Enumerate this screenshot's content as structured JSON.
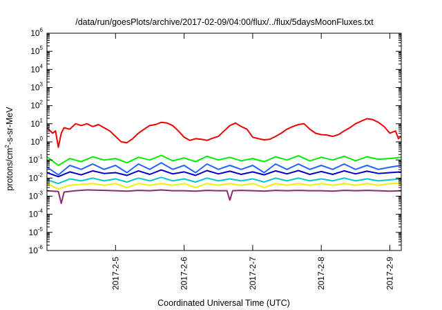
{
  "chart_data": {
    "type": "line",
    "title": "/data/run/goesPlots/archive/2017-02-09/04:00/flux/../flux/5daysMoonFluxes.txt",
    "xlabel": "Coordinated Universal Time (UTC)",
    "ylabel": "protons/cm²-s-sr-MeV",
    "ylabel_parts": {
      "pre": "protons/cm",
      "sup": "2",
      "post": "-s-sr-MeV"
    },
    "yscale": "log",
    "ylim": [
      1e-06,
      1000000.0
    ],
    "y_ticks": [
      {
        "base": "10",
        "exp": "-6",
        "value": 1e-06
      },
      {
        "base": "10",
        "exp": "-5",
        "value": 1e-05
      },
      {
        "base": "10",
        "exp": "-4",
        "value": 0.0001
      },
      {
        "base": "10",
        "exp": "-3",
        "value": 0.001
      },
      {
        "base": "10",
        "exp": "-2",
        "value": 0.01
      },
      {
        "base": "10",
        "exp": "-1",
        "value": 0.1
      },
      {
        "base": "10",
        "exp": "0",
        "value": 1
      },
      {
        "base": "10",
        "exp": "1",
        "value": 10
      },
      {
        "base": "10",
        "exp": "2",
        "value": 100
      },
      {
        "base": "10",
        "exp": "3",
        "value": 1000
      },
      {
        "base": "10",
        "exp": "4",
        "value": 10000
      },
      {
        "base": "10",
        "exp": "5",
        "value": 100000
      },
      {
        "base": "10",
        "exp": "6",
        "value": 1000000
      }
    ],
    "x_range": [
      "2017-02-04T00:00",
      "2017-02-09T04:00"
    ],
    "x_ticks": [
      "2017-2-5",
      "2017-2-6",
      "2017-2-7",
      "2017-2-8",
      "2017-2-9"
    ],
    "x_tick_values": [
      "2017-02-05T00:00",
      "2017-02-06T00:00",
      "2017-02-07T00:00",
      "2017-02-08T00:00",
      "2017-02-09T00:00"
    ],
    "grid": false,
    "legend": "none",
    "series": [
      {
        "color": "#ee0000",
        "x": [
          "2017-02-04T00:00",
          "2017-02-04T02:00",
          "2017-02-04T03:00",
          "2017-02-04T04:00",
          "2017-02-04T05:00",
          "2017-02-04T06:00",
          "2017-02-04T08:00",
          "2017-02-04T10:00",
          "2017-02-04T12:00",
          "2017-02-04T14:00",
          "2017-02-04T16:00",
          "2017-02-04T18:00",
          "2017-02-04T20:00",
          "2017-02-04T22:00",
          "2017-02-05T00:00",
          "2017-02-05T02:00",
          "2017-02-05T04:00",
          "2017-02-05T06:00",
          "2017-02-05T08:00",
          "2017-02-05T10:00",
          "2017-02-05T12:00",
          "2017-02-05T14:00",
          "2017-02-05T16:00",
          "2017-02-05T18:00",
          "2017-02-05T20:00",
          "2017-02-05T22:00",
          "2017-02-06T00:00",
          "2017-02-06T02:00",
          "2017-02-06T04:00",
          "2017-02-06T06:00",
          "2017-02-06T08:00",
          "2017-02-06T10:00",
          "2017-02-06T12:00",
          "2017-02-06T14:00",
          "2017-02-06T16:00",
          "2017-02-06T18:00",
          "2017-02-06T20:00",
          "2017-02-06T22:00",
          "2017-02-07T00:00",
          "2017-02-07T02:00",
          "2017-02-07T04:00",
          "2017-02-07T06:00",
          "2017-02-07T08:00",
          "2017-02-07T10:00",
          "2017-02-07T12:00",
          "2017-02-07T14:00",
          "2017-02-07T16:00",
          "2017-02-07T18:00",
          "2017-02-07T20:00",
          "2017-02-07T22:00",
          "2017-02-08T00:00",
          "2017-02-08T02:00",
          "2017-02-08T04:00",
          "2017-02-08T06:00",
          "2017-02-08T08:00",
          "2017-02-08T10:00",
          "2017-02-08T12:00",
          "2017-02-08T14:00",
          "2017-02-08T16:00",
          "2017-02-08T18:00",
          "2017-02-08T20:00",
          "2017-02-08T22:00",
          "2017-02-09T00:00",
          "2017-02-09T02:00",
          "2017-02-09T03:00",
          "2017-02-09T04:00"
        ],
        "y": [
          6,
          3,
          4,
          0.5,
          3,
          6,
          5,
          10,
          8,
          10,
          7,
          9,
          6,
          4,
          2,
          1,
          0.9,
          1.5,
          3,
          5,
          8,
          9,
          12,
          11,
          8,
          4,
          1.8,
          1.2,
          1.5,
          1.4,
          1.2,
          1.6,
          2,
          4,
          8,
          11,
          7,
          5,
          1.8,
          1.5,
          1.3,
          1.4,
          2,
          3,
          5,
          7,
          9,
          10,
          5,
          3,
          2.5,
          2.4,
          2,
          2.5,
          4,
          6,
          10,
          14,
          19,
          17,
          12,
          7,
          3,
          4,
          1.5,
          2
        ]
      },
      {
        "color": "#00ee00",
        "x": [
          "2017-02-04T00:00",
          "2017-02-04T04:00",
          "2017-02-04T08:00",
          "2017-02-04T12:00",
          "2017-02-04T16:00",
          "2017-02-04T20:00",
          "2017-02-05T00:00",
          "2017-02-05T04:00",
          "2017-02-05T08:00",
          "2017-02-05T12:00",
          "2017-02-05T16:00",
          "2017-02-05T20:00",
          "2017-02-06T00:00",
          "2017-02-06T04:00",
          "2017-02-06T08:00",
          "2017-02-06T12:00",
          "2017-02-06T16:00",
          "2017-02-06T20:00",
          "2017-02-07T00:00",
          "2017-02-07T04:00",
          "2017-02-07T08:00",
          "2017-02-07T12:00",
          "2017-02-07T16:00",
          "2017-02-07T20:00",
          "2017-02-08T00:00",
          "2017-02-08T04:00",
          "2017-02-08T08:00",
          "2017-02-08T12:00",
          "2017-02-08T16:00",
          "2017-02-08T20:00",
          "2017-02-09T00:00",
          "2017-02-09T04:00"
        ],
        "y": [
          0.15,
          0.05,
          0.12,
          0.08,
          0.15,
          0.1,
          0.12,
          0.07,
          0.14,
          0.1,
          0.18,
          0.09,
          0.13,
          0.08,
          0.16,
          0.1,
          0.14,
          0.09,
          0.12,
          0.08,
          0.15,
          0.1,
          0.17,
          0.09,
          0.14,
          0.1,
          0.16,
          0.09,
          0.15,
          0.11,
          0.12,
          0.14
        ]
      },
      {
        "color": "#1e64ff",
        "x": [
          "2017-02-04T00:00",
          "2017-02-04T04:00",
          "2017-02-04T08:00",
          "2017-02-04T12:00",
          "2017-02-04T16:00",
          "2017-02-04T20:00",
          "2017-02-05T00:00",
          "2017-02-05T04:00",
          "2017-02-05T08:00",
          "2017-02-05T12:00",
          "2017-02-05T16:00",
          "2017-02-05T20:00",
          "2017-02-06T00:00",
          "2017-02-06T04:00",
          "2017-02-06T08:00",
          "2017-02-06T12:00",
          "2017-02-06T16:00",
          "2017-02-06T20:00",
          "2017-02-07T00:00",
          "2017-02-07T04:00",
          "2017-02-07T08:00",
          "2017-02-07T12:00",
          "2017-02-07T16:00",
          "2017-02-07T20:00",
          "2017-02-08T00:00",
          "2017-02-08T04:00",
          "2017-02-08T08:00",
          "2017-02-08T12:00",
          "2017-02-08T16:00",
          "2017-02-08T20:00",
          "2017-02-09T00:00",
          "2017-02-09T04:00"
        ],
        "y": [
          0.04,
          0.015,
          0.05,
          0.03,
          0.06,
          0.03,
          0.05,
          0.02,
          0.06,
          0.03,
          0.07,
          0.03,
          0.05,
          0.02,
          0.06,
          0.03,
          0.05,
          0.03,
          0.05,
          0.02,
          0.06,
          0.03,
          0.06,
          0.03,
          0.05,
          0.03,
          0.06,
          0.03,
          0.05,
          0.03,
          0.04,
          0.05
        ]
      },
      {
        "color": "#0000c8",
        "x": [
          "2017-02-04T00:00",
          "2017-02-04T04:00",
          "2017-02-04T08:00",
          "2017-02-04T12:00",
          "2017-02-04T16:00",
          "2017-02-04T20:00",
          "2017-02-05T00:00",
          "2017-02-05T04:00",
          "2017-02-05T08:00",
          "2017-02-05T12:00",
          "2017-02-05T16:00",
          "2017-02-05T20:00",
          "2017-02-06T00:00",
          "2017-02-06T04:00",
          "2017-02-06T08:00",
          "2017-02-06T12:00",
          "2017-02-06T16:00",
          "2017-02-06T20:00",
          "2017-02-07T00:00",
          "2017-02-07T04:00",
          "2017-02-07T08:00",
          "2017-02-07T12:00",
          "2017-02-07T16:00",
          "2017-02-07T20:00",
          "2017-02-08T00:00",
          "2017-02-08T04:00",
          "2017-02-08T08:00",
          "2017-02-08T12:00",
          "2017-02-08T16:00",
          "2017-02-08T20:00",
          "2017-02-09T00:00",
          "2017-02-09T04:00"
        ],
        "y": [
          0.02,
          0.012,
          0.022,
          0.015,
          0.025,
          0.018,
          0.02,
          0.014,
          0.025,
          0.016,
          0.028,
          0.017,
          0.022,
          0.014,
          0.026,
          0.017,
          0.024,
          0.016,
          0.022,
          0.015,
          0.025,
          0.017,
          0.026,
          0.016,
          0.023,
          0.016,
          0.025,
          0.017,
          0.024,
          0.018,
          0.02,
          0.022
        ]
      },
      {
        "color": "#00c8c8",
        "x": [
          "2017-02-04T00:00",
          "2017-02-04T04:00",
          "2017-02-04T08:00",
          "2017-02-04T12:00",
          "2017-02-04T16:00",
          "2017-02-04T20:00",
          "2017-02-05T00:00",
          "2017-02-05T04:00",
          "2017-02-05T08:00",
          "2017-02-05T12:00",
          "2017-02-05T16:00",
          "2017-02-05T20:00",
          "2017-02-06T00:00",
          "2017-02-06T04:00",
          "2017-02-06T08:00",
          "2017-02-06T12:00",
          "2017-02-06T16:00",
          "2017-02-06T20:00",
          "2017-02-07T00:00",
          "2017-02-07T04:00",
          "2017-02-07T08:00",
          "2017-02-07T12:00",
          "2017-02-07T16:00",
          "2017-02-07T20:00",
          "2017-02-08T00:00",
          "2017-02-08T04:00",
          "2017-02-08T08:00",
          "2017-02-08T12:00",
          "2017-02-08T16:00",
          "2017-02-08T20:00",
          "2017-02-09T00:00",
          "2017-02-09T04:00"
        ],
        "y": [
          0.008,
          0.005,
          0.009,
          0.007,
          0.01,
          0.007,
          0.009,
          0.006,
          0.01,
          0.007,
          0.011,
          0.007,
          0.009,
          0.006,
          0.01,
          0.007,
          0.009,
          0.007,
          0.009,
          0.006,
          0.01,
          0.007,
          0.01,
          0.007,
          0.009,
          0.007,
          0.01,
          0.007,
          0.009,
          0.007,
          0.008,
          0.009
        ]
      },
      {
        "color": "#f0f000",
        "x": [
          "2017-02-04T00:00",
          "2017-02-04T04:00",
          "2017-02-04T08:00",
          "2017-02-04T12:00",
          "2017-02-04T16:00",
          "2017-02-04T20:00",
          "2017-02-05T00:00",
          "2017-02-05T04:00",
          "2017-02-05T08:00",
          "2017-02-05T12:00",
          "2017-02-05T16:00",
          "2017-02-05T20:00",
          "2017-02-06T00:00",
          "2017-02-06T04:00",
          "2017-02-06T08:00",
          "2017-02-06T12:00",
          "2017-02-06T16:00",
          "2017-02-06T20:00",
          "2017-02-07T00:00",
          "2017-02-07T04:00",
          "2017-02-07T08:00",
          "2017-02-07T12:00",
          "2017-02-07T16:00",
          "2017-02-07T20:00",
          "2017-02-08T00:00",
          "2017-02-08T04:00",
          "2017-02-08T08:00",
          "2017-02-08T12:00",
          "2017-02-08T16:00",
          "2017-02-08T20:00",
          "2017-02-09T00:00",
          "2017-02-09T04:00"
        ],
        "y": [
          0.005,
          0.0025,
          0.004,
          0.0045,
          0.005,
          0.004,
          0.005,
          0.003,
          0.005,
          0.004,
          0.005,
          0.004,
          0.005,
          0.003,
          0.005,
          0.004,
          0.005,
          0.004,
          0.005,
          0.003,
          0.005,
          0.004,
          0.005,
          0.004,
          0.005,
          0.004,
          0.005,
          0.004,
          0.005,
          0.004,
          0.005,
          0.005
        ]
      },
      {
        "color": "#8c286e",
        "x": [
          "2017-02-04T00:00",
          "2017-02-04T04:00",
          "2017-02-04T05:00",
          "2017-02-04T06:00",
          "2017-02-04T10:00",
          "2017-02-04T14:00",
          "2017-02-04T20:00",
          "2017-02-05T00:00",
          "2017-02-05T04:00",
          "2017-02-05T08:00",
          "2017-02-05T12:00",
          "2017-02-05T16:00",
          "2017-02-05T20:00",
          "2017-02-06T00:00",
          "2017-02-06T04:00",
          "2017-02-06T08:00",
          "2017-02-06T12:00",
          "2017-02-06T15:00",
          "2017-02-06T16:00",
          "2017-02-06T17:00",
          "2017-02-06T20:00",
          "2017-02-07T00:00",
          "2017-02-07T04:00",
          "2017-02-07T08:00",
          "2017-02-07T12:00",
          "2017-02-07T16:00",
          "2017-02-07T20:00",
          "2017-02-08T00:00",
          "2017-02-08T04:00",
          "2017-02-08T08:00",
          "2017-02-08T12:00",
          "2017-02-08T16:00",
          "2017-02-08T20:00",
          "2017-02-09T00:00",
          "2017-02-09T04:00"
        ],
        "y": [
          0.002,
          0.0018,
          0.0004,
          0.0017,
          0.002,
          0.0022,
          0.0021,
          0.002,
          0.0019,
          0.0021,
          0.002,
          0.0022,
          0.002,
          0.002,
          0.0019,
          0.0021,
          0.002,
          0.002,
          0.0006,
          0.002,
          0.0021,
          0.002,
          0.0019,
          0.0021,
          0.002,
          0.0021,
          0.002,
          0.002,
          0.0019,
          0.0021,
          0.002,
          0.0021,
          0.002,
          0.0019,
          0.002
        ]
      }
    ]
  }
}
